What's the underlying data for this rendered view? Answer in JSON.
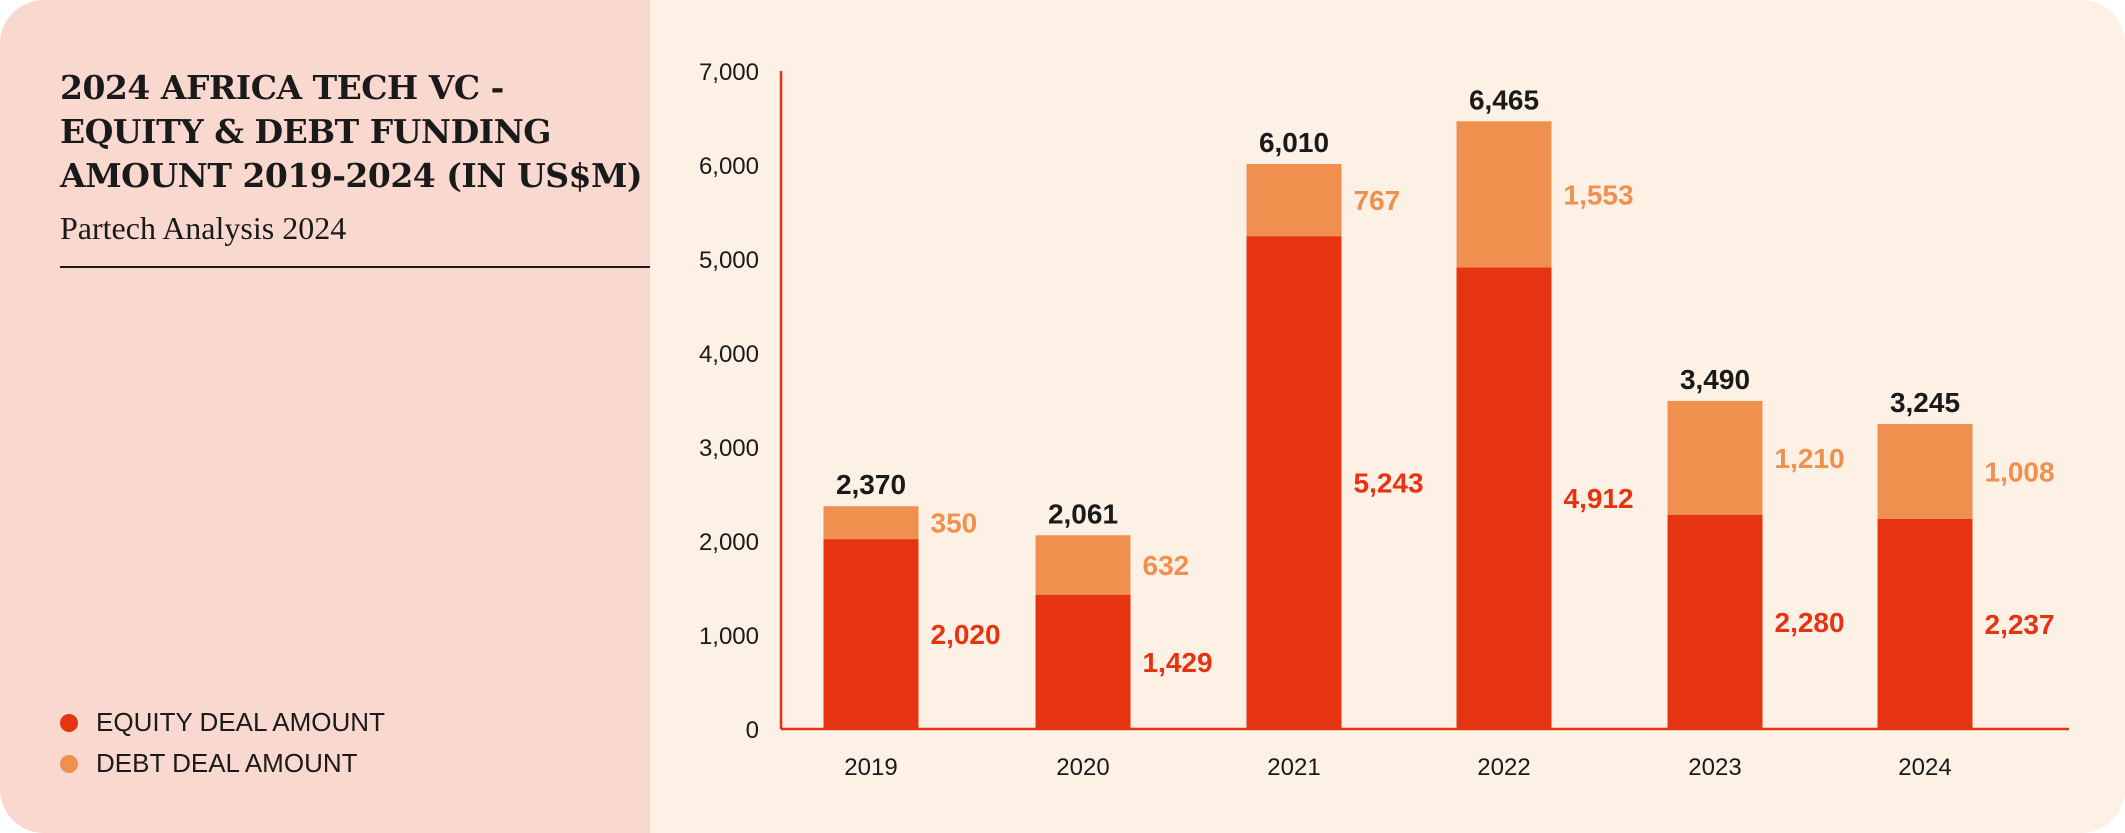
{
  "title": "2024 AFRICA TECH VC - EQUITY & DEBT FUNDING AMOUNT 2019-2024 (IN US$M)",
  "subtitle": "Partech Analysis 2024",
  "legend": [
    {
      "label": "EQUITY DEAL AMOUNT",
      "color": "#e63312"
    },
    {
      "label": "DEBT DEAL AMOUNT",
      "color": "#f0904e"
    }
  ],
  "chart_data": {
    "type": "bar",
    "stacked": true,
    "categories": [
      "2019",
      "2020",
      "2021",
      "2022",
      "2023",
      "2024"
    ],
    "series": [
      {
        "name": "EQUITY DEAL AMOUNT",
        "values": [
          2020,
          1429,
          5243,
          4912,
          2280,
          2237
        ],
        "labels": [
          "2,020",
          "1,429",
          "5,243",
          "4,912",
          "2,280",
          "2,237"
        ],
        "color": "#e63312"
      },
      {
        "name": "DEBT DEAL AMOUNT",
        "values": [
          350,
          632,
          767,
          1553,
          1210,
          1008
        ],
        "labels": [
          "350",
          "632",
          "767",
          "1,553",
          "1,210",
          "1,008"
        ],
        "color": "#f0904e"
      }
    ],
    "totals": [
      "2,370",
      "2,061",
      "6,010",
      "6,465",
      "3,490",
      "3,245"
    ],
    "ylim": [
      0,
      7000
    ],
    "yticks": [
      "0",
      "1,000",
      "2,000",
      "3,000",
      "4,000",
      "5,000",
      "6,000",
      "7,000"
    ],
    "grid": false,
    "legend_position": "bottom-left",
    "axis_color": "#e63312"
  }
}
